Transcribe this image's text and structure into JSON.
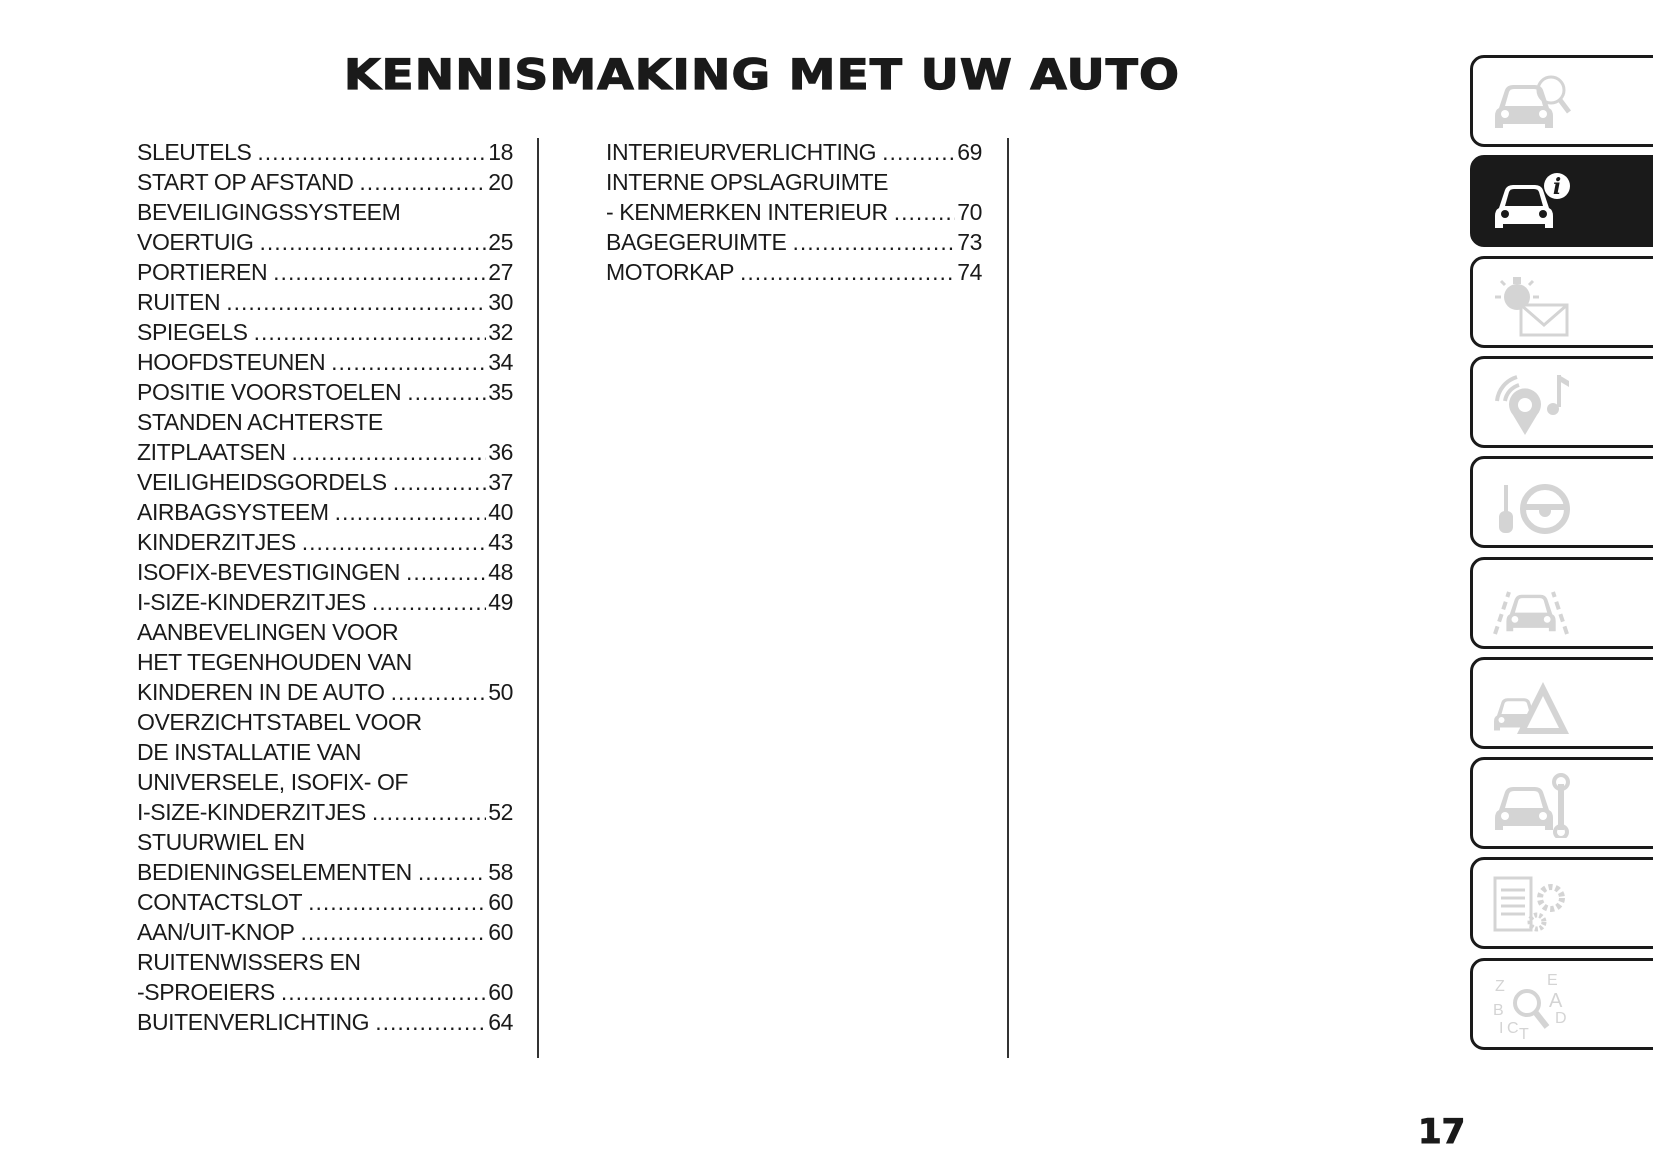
{
  "title": "KENNISMAKING MET UW AUTO",
  "page_number": "17",
  "toc_column_1": [
    {
      "lines": [
        "SLEUTELS"
      ],
      "page": "18"
    },
    {
      "lines": [
        "START OP AFSTAND"
      ],
      "page": "20"
    },
    {
      "lines": [
        "BEVEILIGINGSSYSTEEM",
        "VOERTUIG"
      ],
      "page": "25"
    },
    {
      "lines": [
        "PORTIEREN"
      ],
      "page": "27"
    },
    {
      "lines": [
        "RUITEN"
      ],
      "page": "30"
    },
    {
      "lines": [
        "SPIEGELS"
      ],
      "page": "32"
    },
    {
      "lines": [
        "HOOFDSTEUNEN"
      ],
      "page": "34"
    },
    {
      "lines": [
        "POSITIE VOORSTOELEN"
      ],
      "page": "35"
    },
    {
      "lines": [
        "STANDEN ACHTERSTE",
        "ZITPLAATSEN"
      ],
      "page": "36"
    },
    {
      "lines": [
        "VEILIGHEIDSGORDELS"
      ],
      "page": "37"
    },
    {
      "lines": [
        "AIRBAGSYSTEEM"
      ],
      "page": "40"
    },
    {
      "lines": [
        "KINDERZITJES"
      ],
      "page": "43"
    },
    {
      "lines": [
        "ISOFIX-BEVESTIGINGEN"
      ],
      "page": "48"
    },
    {
      "lines": [
        "I-SIZE-KINDERZITJES"
      ],
      "page": "49"
    },
    {
      "lines": [
        "AANBEVELINGEN VOOR",
        "HET TEGENHOUDEN VAN",
        "KINDEREN IN DE AUTO"
      ],
      "page": "50"
    },
    {
      "lines": [
        "OVERZICHTSTABEL VOOR",
        "DE INSTALLATIE VAN",
        "UNIVERSELE, ISOFIX- OF",
        "I-SIZE-KINDERZITJES"
      ],
      "page": "52"
    },
    {
      "lines": [
        "STUURWIEL EN",
        "BEDIENINGSELEMENTEN"
      ],
      "page": "58"
    },
    {
      "lines": [
        "CONTACTSLOT"
      ],
      "page": "60"
    },
    {
      "lines": [
        "AAN/UIT-KNOP"
      ],
      "page": "60"
    },
    {
      "lines": [
        "RUITENWISSERS EN",
        "-SPROEIERS"
      ],
      "page": "60"
    },
    {
      "lines": [
        "BUITENVERLICHTING"
      ],
      "page": "64"
    }
  ],
  "toc_column_2": [
    {
      "lines": [
        "INTERIEURVERLICHTING"
      ],
      "page": "69"
    },
    {
      "lines": [
        "INTERNE OPSLAGRUIMTE",
        "- KENMERKEN INTERIEUR"
      ],
      "page": "70"
    },
    {
      "lines": [
        "BAGEGERUIMTE"
      ],
      "page": "73"
    },
    {
      "lines": [
        "MOTORKAP"
      ],
      "page": "74"
    }
  ],
  "section_tabs": [
    {
      "icon": "car-magnifier-icon",
      "active": false
    },
    {
      "icon": "car-info-icon",
      "active": true
    },
    {
      "icon": "warning-light-envelope-icon",
      "active": false
    },
    {
      "icon": "multimedia-location-music-icon",
      "active": false
    },
    {
      "icon": "gear-lever-steering-wheel-icon",
      "active": false
    },
    {
      "icon": "driver-assist-car-lanes-icon",
      "active": false
    },
    {
      "icon": "car-emergency-warning-triangle-icon",
      "active": false
    },
    {
      "icon": "car-wrench-icon",
      "active": false
    },
    {
      "icon": "specifications-gears-icon",
      "active": false
    },
    {
      "icon": "alphabetical-index-icon",
      "active": false
    }
  ],
  "colors": {
    "text": "#1a1a1a",
    "icon_inactive": "#d4d4d4",
    "tab_active": "#1a1a1a"
  }
}
